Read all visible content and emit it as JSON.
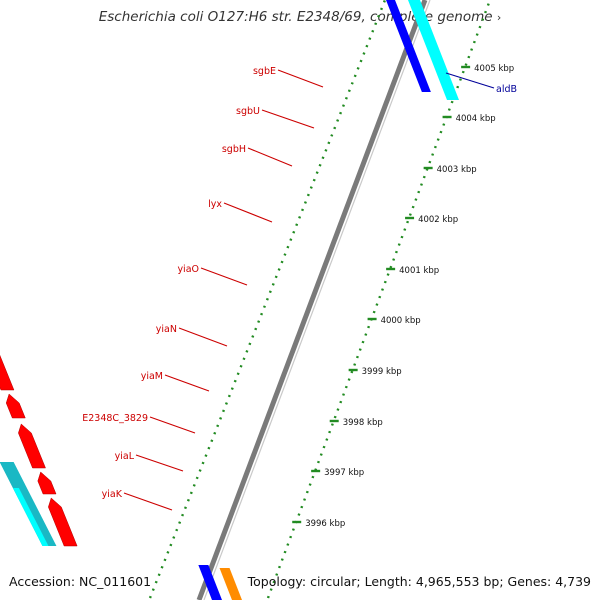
{
  "title": "Escherichia coli O127:H6 str. E2348/69, complete genome",
  "title_arrow": "›",
  "footer": {
    "accession": "Accession: NC_011601",
    "info": "Topology: circular; Length: 4,965,553 bp; Genes: 4,739"
  },
  "colors": {
    "background": "#ffffff",
    "forward_cds_dark": "#1ab8c4",
    "forward_cds_light": "#00ffff",
    "reverse_cds": "#ff0000",
    "rrna_blue": "#0000ff",
    "orange_feature": "#ff8c00",
    "backbone": "#7a7a7a",
    "ticks": "#228b22",
    "gene_label_red": "#cc0000",
    "gene_label_blue": "#000099"
  },
  "scale_labels": [
    "4005 kbp",
    "4004 kbp",
    "4003 kbp",
    "4002 kbp",
    "4001 kbp",
    "4000 kbp",
    "3999 kbp",
    "3998 kbp",
    "3997 kbp",
    "3996 kbp"
  ],
  "gene_labels": [
    {
      "name": "sgbE",
      "strand": "reverse"
    },
    {
      "name": "sgbU",
      "strand": "reverse"
    },
    {
      "name": "sgbH",
      "strand": "reverse"
    },
    {
      "name": "lyx",
      "strand": "reverse"
    },
    {
      "name": "yiaO",
      "strand": "reverse"
    },
    {
      "name": "yiaN",
      "strand": "reverse"
    },
    {
      "name": "yiaM",
      "strand": "reverse"
    },
    {
      "name": "E2348C_3829",
      "strand": "reverse"
    },
    {
      "name": "yiaL",
      "strand": "reverse"
    },
    {
      "name": "yiaK",
      "strand": "reverse"
    },
    {
      "name": "aldB",
      "strand": "forward"
    }
  ]
}
